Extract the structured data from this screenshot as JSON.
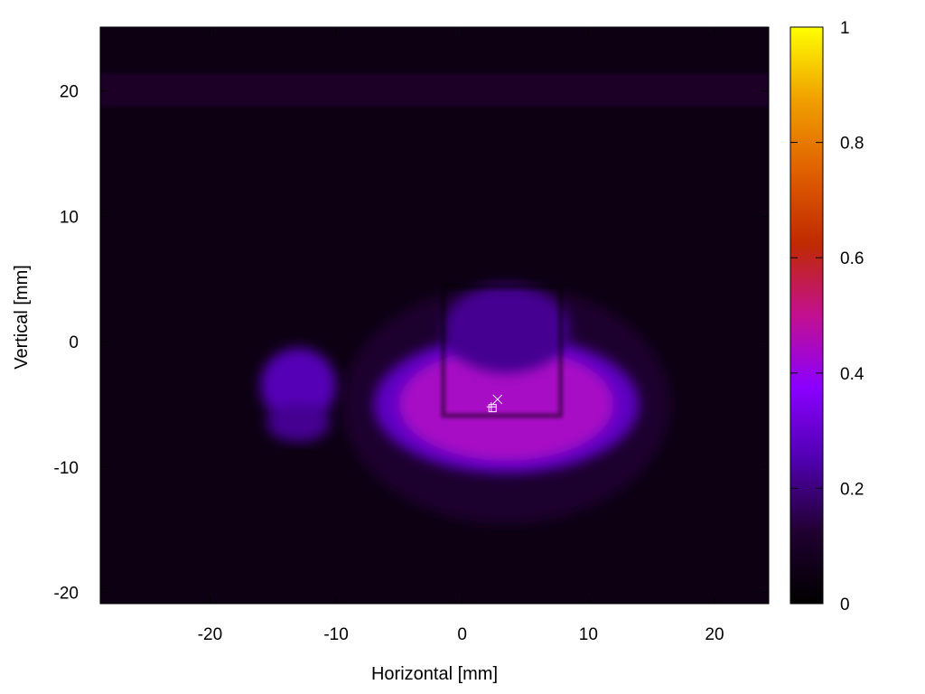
{
  "chart_data": {
    "type": "heatmap",
    "title": "",
    "xlabel": "Horizontal [mm]",
    "ylabel": "Vertical [mm]",
    "xlim": [
      -28.7,
      24.3
    ],
    "ylim": [
      -20.9,
      25.1
    ],
    "x_ticks": [
      -20,
      -10,
      0,
      10,
      20
    ],
    "y_ticks": [
      -20,
      -10,
      0,
      10,
      20
    ],
    "x_tick_labels": [
      "-20",
      "-10",
      "0",
      "10",
      "20"
    ],
    "y_tick_labels": [
      "-20",
      "-10",
      "0",
      "10",
      "20"
    ],
    "colorbar": {
      "range": [
        0,
        1
      ],
      "ticks": [
        0,
        0.2,
        0.4,
        0.6,
        0.8,
        1
      ],
      "tick_labels": [
        "0",
        "0.2",
        "0.4",
        "0.6",
        "0.8",
        "1"
      ],
      "colormap": [
        "#000000",
        "#200030",
        "#5000b0",
        "#8a00ff",
        "#c21090",
        "#c02a00",
        "#e06000",
        "#f0a000",
        "#ffff00"
      ]
    },
    "background_level": 0.05,
    "top_band": {
      "y_range": [
        18.8,
        21.4
      ],
      "level": 0.1
    },
    "grid_lines_x": [
      -25.8,
      -23.3,
      -16,
      -6,
      0,
      3.5,
      12,
      17,
      18.5
    ],
    "grid_lines_y": [
      10,
      0,
      -11
    ],
    "features": [
      {
        "shape": "ellipse",
        "center": [
          3.5,
          -5
        ],
        "radius": [
          13,
          9.5
        ],
        "level": 0.12
      },
      {
        "shape": "ellipse",
        "center": [
          3.5,
          -5
        ],
        "radius": [
          10.5,
          5.5
        ],
        "level": 0.28
      },
      {
        "shape": "ellipse",
        "center": [
          3.5,
          -5
        ],
        "radius": [
          8.5,
          4.5
        ],
        "level": 0.44
      },
      {
        "shape": "ellipse",
        "center": [
          3.5,
          1
        ],
        "radius": [
          5,
          3.5
        ],
        "level": 0.22
      },
      {
        "shape": "ellipse",
        "center": [
          -13,
          -3.5
        ],
        "radius": [
          3,
          3
        ],
        "level": 0.26
      },
      {
        "shape": "ellipse",
        "center": [
          -13,
          -6.5
        ],
        "radius": [
          2.5,
          1.5
        ],
        "level": 0.22
      }
    ],
    "overlay_rect": {
      "x": [
        -1.5,
        7.8
      ],
      "y": [
        -5.9,
        4.4
      ]
    },
    "markers": [
      {
        "symbol": "x",
        "x": 2.8,
        "y": -4.6
      },
      {
        "symbol": "plus",
        "x": 2.3,
        "y": -5.2
      },
      {
        "symbol": "square",
        "x": 2.4,
        "y": -5.3
      }
    ]
  }
}
